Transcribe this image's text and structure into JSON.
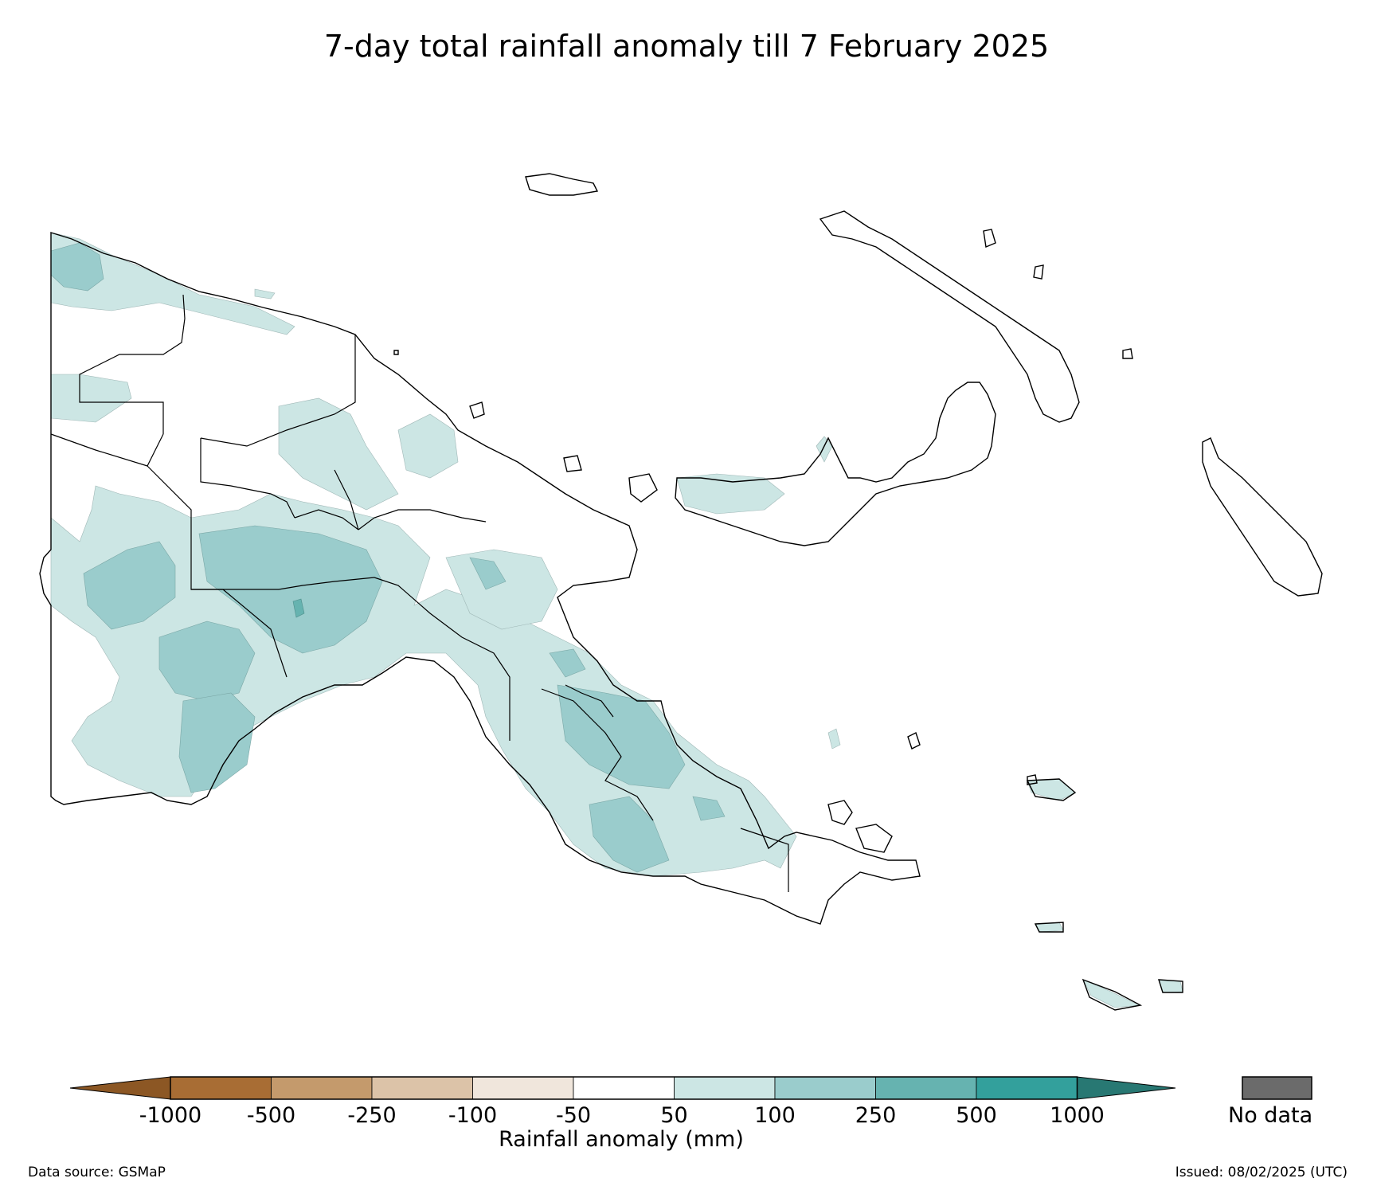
{
  "title": "7-day total rainfall anomaly till 7 February 2025",
  "map": {
    "region": "Papua New Guinea",
    "background_color": "#ffffff",
    "coastline_color": "#000000",
    "anomaly_fill_colors": {
      "50_to_100": "#cce6e4",
      "100_to_250": "#9acccc",
      "250_to_500": "#66b3b0"
    }
  },
  "colorbar": {
    "title": "Rainfall anomaly (mm)",
    "ticks": [
      "-1000",
      "-500",
      "-250",
      "-100",
      "-50",
      "50",
      "100",
      "250",
      "500",
      "1000"
    ],
    "segment_colors": [
      "#a86d34",
      "#c49a6c",
      "#dcc3a8",
      "#f0e6dc",
      "#ffffff",
      "#cce6e4",
      "#9acccc",
      "#66b3b0",
      "#33a09c"
    ],
    "lower_extend_color": "#8c5724",
    "upper_extend_color": "#287873",
    "nodata_label": "No data",
    "nodata_color": "#6b6b6b"
  },
  "footer": {
    "source": "Data source: GSMaP",
    "issued": "Issued: 08/02/2025 (UTC)"
  }
}
